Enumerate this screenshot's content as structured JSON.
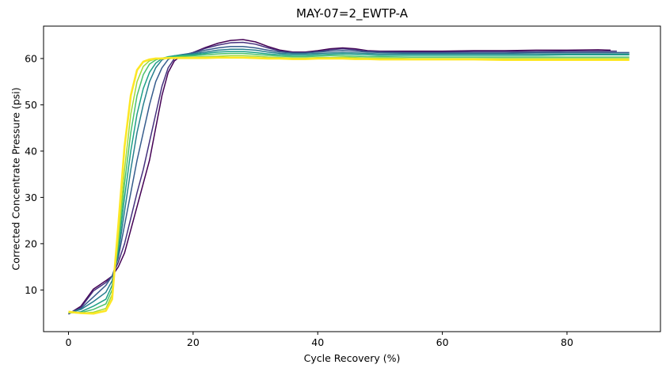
{
  "chart_data": {
    "type": "line",
    "title": "MAY-07=2_EWTP-A",
    "xlabel": "Cycle Recovery (%)",
    "ylabel": "Corrected Concentrate Pressure (psi)",
    "xlim": [
      -4,
      95
    ],
    "ylim": [
      1,
      67
    ],
    "x_ticks": [
      0,
      20,
      40,
      60,
      80
    ],
    "y_ticks": [
      10,
      20,
      30,
      40,
      50,
      60
    ],
    "colormap": "viridis",
    "grid": false,
    "series": [
      {
        "color": "#440154",
        "x": [
          0,
          2,
          4,
          6,
          7,
          8,
          9,
          10,
          11,
          12,
          13,
          14,
          15,
          16,
          17,
          18,
          20,
          22,
          24,
          26,
          28,
          30,
          32,
          34,
          36,
          38,
          40,
          42,
          44,
          46,
          48,
          50,
          55,
          60,
          65,
          70,
          75,
          80,
          85,
          87
        ],
        "y": [
          4.8,
          6.5,
          10.2,
          12,
          13,
          15,
          18,
          23,
          28,
          33,
          38,
          45,
          52,
          57,
          59.5,
          60.5,
          61.3,
          62.4,
          63.3,
          63.9,
          64.1,
          63.6,
          62.6,
          61.8,
          61.4,
          61.4,
          61.7,
          62.1,
          62.3,
          62.1,
          61.7,
          61.6,
          61.6,
          61.6,
          61.7,
          61.7,
          61.8,
          61.8,
          61.9,
          61.8
        ]
      },
      {
        "color": "#46317e",
        "x": [
          0,
          2,
          4,
          6,
          7,
          8,
          9,
          10,
          11,
          12,
          13,
          14,
          15,
          16,
          17,
          18,
          20,
          22,
          24,
          26,
          28,
          30,
          32,
          34,
          36,
          38,
          40,
          42,
          44,
          46,
          48,
          50,
          55,
          60,
          65,
          70,
          75,
          80,
          85,
          88
        ],
        "y": [
          4.8,
          6.2,
          9.8,
          11.6,
          13,
          16,
          20,
          25.5,
          31,
          36,
          42,
          48,
          54,
          58,
          60,
          60.6,
          61.3,
          62.2,
          62.9,
          63.4,
          63.5,
          63.1,
          62.3,
          61.6,
          61.3,
          61.3,
          61.5,
          61.9,
          62.1,
          61.9,
          61.6,
          61.5,
          61.4,
          61.4,
          61.5,
          61.5,
          61.5,
          61.6,
          61.6,
          61.6
        ]
      },
      {
        "color": "#365c8d",
        "x": [
          0,
          2,
          4,
          6,
          7,
          8,
          9,
          10,
          11,
          12,
          13,
          14,
          15,
          16,
          17,
          18,
          20,
          22,
          24,
          26,
          28,
          30,
          32,
          34,
          36,
          38,
          40,
          42,
          44,
          46,
          48,
          50,
          55,
          60,
          65,
          70,
          75,
          80,
          85,
          90
        ],
        "y": [
          5,
          6,
          8.5,
          11,
          13,
          17,
          24,
          31,
          38,
          44,
          50,
          55,
          58,
          59.8,
          60.4,
          60.8,
          61.2,
          61.8,
          62.3,
          62.6,
          62.6,
          62.3,
          61.8,
          61.4,
          61.2,
          61.2,
          61.4,
          61.6,
          61.7,
          61.6,
          61.4,
          61.3,
          61.2,
          61.2,
          61.2,
          61.2,
          61.3,
          61.3,
          61.3,
          61.3
        ]
      },
      {
        "color": "#277f8e",
        "x": [
          0,
          2,
          4,
          6,
          7,
          8,
          9,
          10,
          11,
          12,
          13,
          14,
          15,
          16,
          17,
          18,
          20,
          22,
          24,
          26,
          28,
          30,
          32,
          34,
          36,
          38,
          40,
          42,
          44,
          46,
          48,
          50,
          55,
          60,
          65,
          70,
          75,
          80,
          85,
          90
        ],
        "y": [
          5,
          5.8,
          7.5,
          9.5,
          12,
          18,
          27,
          36,
          44,
          50,
          55,
          58,
          59.7,
          60.3,
          60.6,
          60.8,
          61,
          61.4,
          61.8,
          62,
          62,
          61.8,
          61.4,
          61.1,
          61,
          61,
          61.1,
          61.2,
          61.3,
          61.2,
          61.1,
          61,
          61,
          61,
          61,
          61,
          61,
          61,
          61,
          61
        ]
      },
      {
        "color": "#1fa187",
        "x": [
          0,
          2,
          4,
          6,
          7,
          8,
          9,
          10,
          11,
          12,
          13,
          14,
          15,
          16,
          17,
          18,
          20,
          22,
          24,
          26,
          28,
          30,
          32,
          34,
          36,
          38,
          40,
          42,
          44,
          46,
          48,
          50,
          55,
          60,
          65,
          70,
          75,
          80,
          85,
          90
        ],
        "y": [
          5,
          5.3,
          6.5,
          8,
          11,
          19,
          30,
          40,
          48,
          53.5,
          57,
          59,
          60,
          60.4,
          60.6,
          60.7,
          60.8,
          61.1,
          61.4,
          61.5,
          61.5,
          61.3,
          61,
          60.8,
          60.7,
          60.7,
          60.8,
          60.9,
          61,
          60.9,
          60.8,
          60.7,
          60.7,
          60.7,
          60.7,
          60.7,
          60.7,
          60.8,
          60.8,
          60.8
        ]
      },
      {
        "color": "#4ac16d",
        "x": [
          0,
          2,
          4,
          6,
          7,
          8,
          9,
          10,
          11,
          12,
          13,
          14,
          15,
          16,
          17,
          18,
          20,
          22,
          24,
          26,
          28,
          30,
          32,
          34,
          36,
          38,
          40,
          42,
          44,
          46,
          48,
          50,
          55,
          60,
          65,
          70,
          75,
          80,
          85,
          90
        ],
        "y": [
          5.1,
          5.1,
          5.8,
          7,
          10,
          20,
          33,
          44,
          52,
          56.5,
          58.8,
          59.7,
          60.1,
          60.3,
          60.4,
          60.5,
          60.6,
          60.8,
          61,
          61.1,
          61.1,
          60.9,
          60.7,
          60.5,
          60.4,
          60.4,
          60.5,
          60.6,
          60.6,
          60.5,
          60.4,
          60.4,
          60.3,
          60.3,
          60.3,
          60.3,
          60.3,
          60.3,
          60.3,
          60.3
        ]
      },
      {
        "color": "#a0da39",
        "x": [
          0,
          2,
          4,
          6,
          7,
          8,
          9,
          10,
          11,
          12,
          13,
          14,
          15,
          16,
          17,
          18,
          20,
          22,
          24,
          26,
          28,
          30,
          32,
          34,
          36,
          38,
          40,
          42,
          44,
          46,
          48,
          50,
          55,
          60,
          65,
          70,
          75,
          80,
          85,
          90
        ],
        "y": [
          5.1,
          5,
          5.2,
          6,
          9,
          21,
          36,
          48,
          55,
          58.3,
          59.5,
          59.9,
          60.1,
          60.2,
          60.2,
          60.3,
          60.3,
          60.4,
          60.5,
          60.6,
          60.6,
          60.5,
          60.3,
          60.2,
          60.1,
          60.1,
          60.2,
          60.2,
          60.3,
          60.2,
          60.1,
          60.1,
          60,
          60,
          60,
          60,
          60,
          60,
          60,
          60
        ]
      },
      {
        "color": "#fde725",
        "x": [
          0,
          2,
          4,
          6,
          7,
          8,
          9,
          10,
          11,
          12,
          13,
          14,
          15,
          16,
          17,
          18,
          20,
          22,
          24,
          26,
          28,
          30,
          32,
          34,
          36,
          38,
          40,
          42,
          44,
          46,
          48,
          50,
          55,
          60,
          65,
          70,
          75,
          80,
          85,
          90
        ],
        "y": [
          5.3,
          5,
          4.9,
          5.5,
          8,
          24,
          41,
          52,
          57.5,
          59.3,
          59.8,
          60,
          60,
          60.1,
          60.1,
          60.1,
          60.1,
          60.1,
          60.2,
          60.2,
          60.2,
          60.1,
          60,
          60,
          59.9,
          59.9,
          60,
          60,
          60,
          59.9,
          59.9,
          59.8,
          59.8,
          59.8,
          59.8,
          59.7,
          59.7,
          59.7,
          59.7,
          59.7
        ]
      }
    ]
  }
}
